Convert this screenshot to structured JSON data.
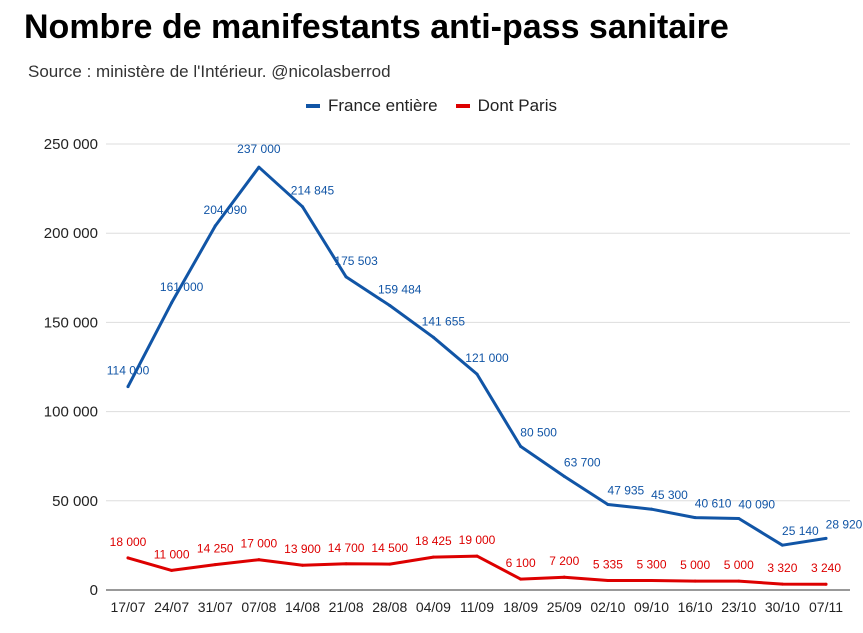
{
  "chart_data": {
    "type": "line",
    "title": "Nombre de manifestants anti-pass sanitaire",
    "subtitle": "Source : ministère de l'Intérieur. @nicolasberrod",
    "xlabel": "",
    "ylabel": "",
    "categories": [
      "17/07",
      "24/07",
      "31/07",
      "07/08",
      "14/08",
      "21/08",
      "28/08",
      "04/09",
      "11/09",
      "18/09",
      "25/09",
      "02/10",
      "09/10",
      "16/10",
      "23/10",
      "30/10",
      "07/11"
    ],
    "ylim": [
      0,
      250000
    ],
    "yticks": [
      "0",
      "50 000",
      "100 000",
      "150 000",
      "200 000",
      "250 000"
    ],
    "grid": true,
    "legend_position": "top",
    "series": [
      {
        "name": "France entière",
        "color": "#1155a6",
        "values": [
          114000,
          161000,
          204090,
          237000,
          214845,
          175503,
          159484,
          141655,
          121000,
          80500,
          63700,
          47935,
          45300,
          40610,
          40090,
          25140,
          28920
        ],
        "labels": [
          "114 000",
          "161 000",
          "204 090",
          "237 000",
          "214 845",
          "175 503",
          "159 484",
          "141 655",
          "121 000",
          "80 500",
          "63 700",
          "47 935",
          "45 300",
          "40 610",
          "40 090",
          "25 140",
          "28 920"
        ]
      },
      {
        "name": "Dont Paris",
        "color": "#dd0000",
        "values": [
          18000,
          11000,
          14250,
          17000,
          13900,
          14700,
          14500,
          18425,
          19000,
          6100,
          7200,
          5335,
          5300,
          5000,
          5000,
          3320,
          3240
        ],
        "labels": [
          "18 000",
          "11 000",
          "14 250",
          "17 000",
          "13 900",
          "14 700",
          "14 500",
          "18 425",
          "19 000",
          "6 100",
          "7 200",
          "5 335",
          "5 300",
          "5 000",
          "5 000",
          "3 320",
          "3 240"
        ]
      }
    ]
  }
}
